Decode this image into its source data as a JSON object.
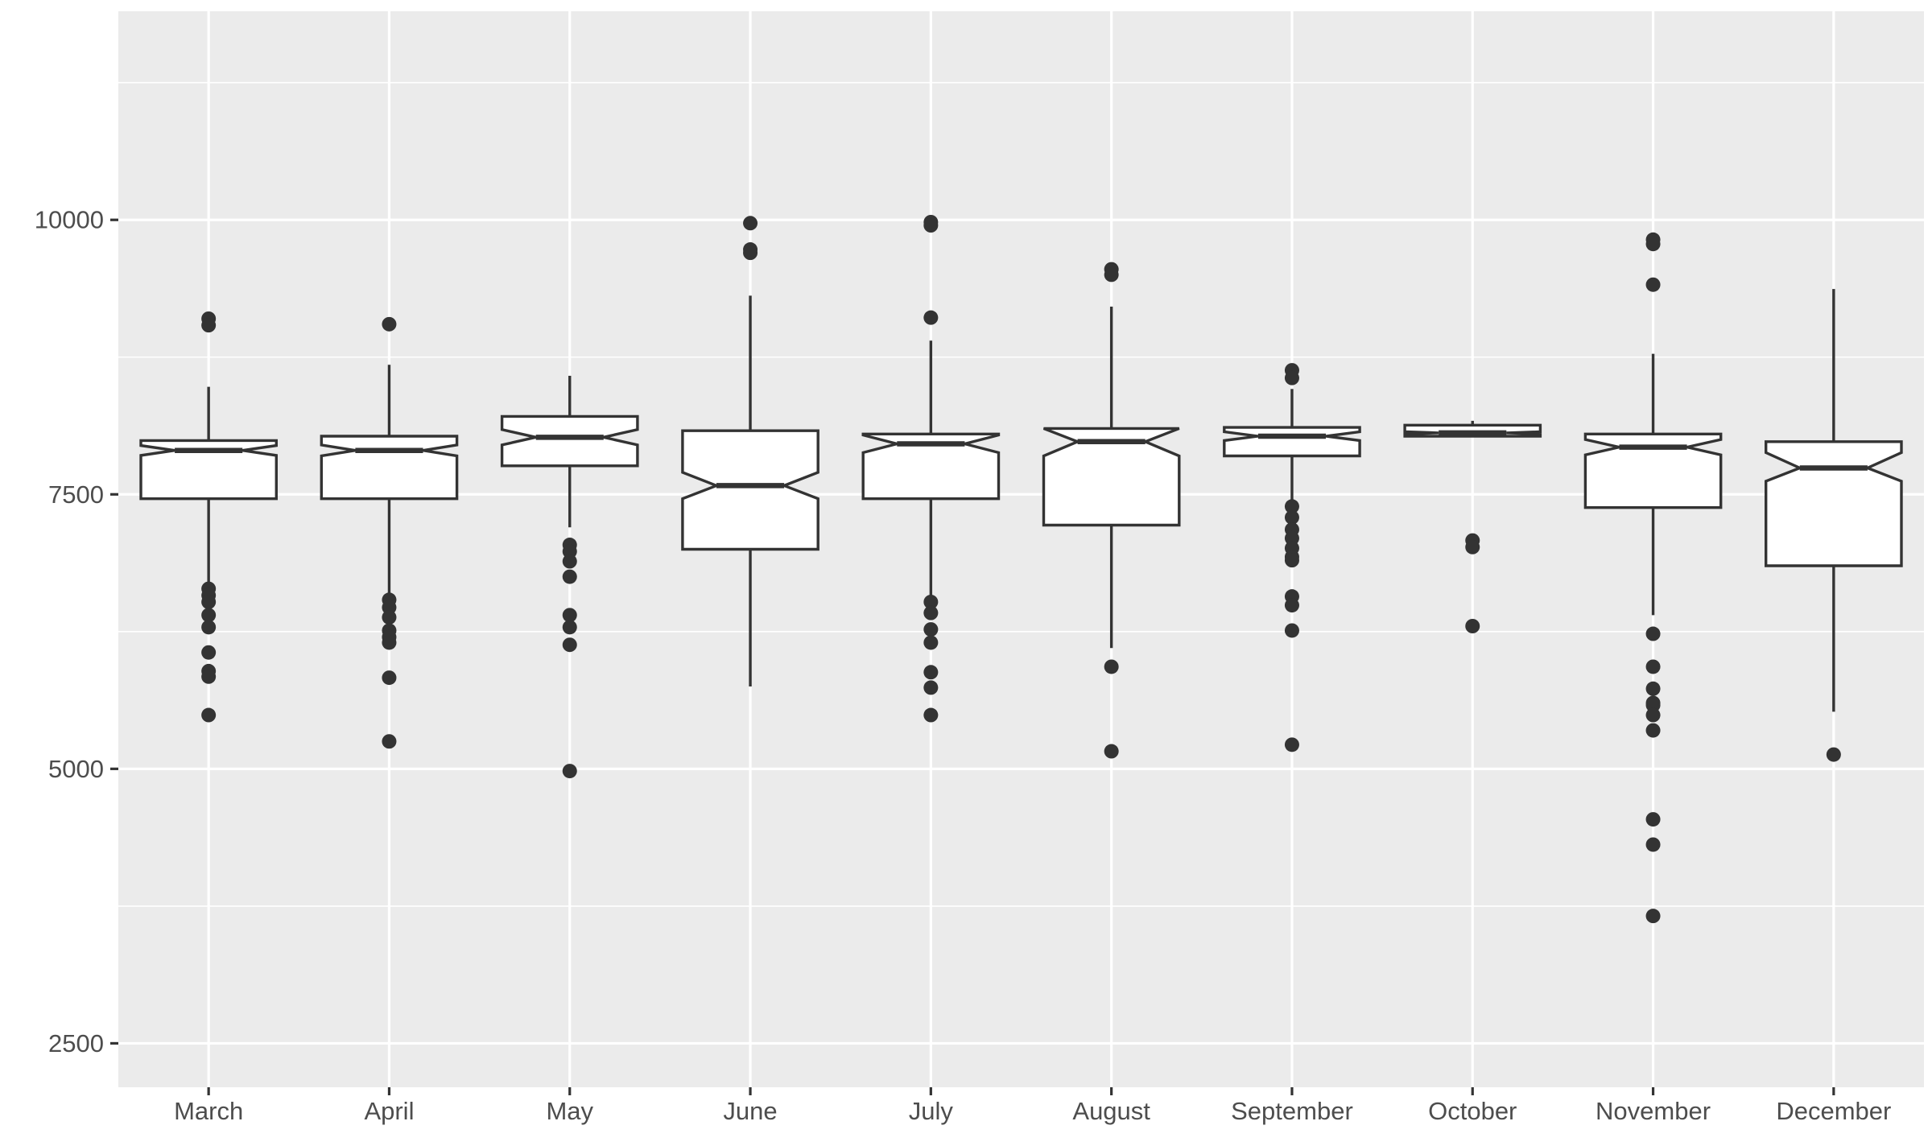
{
  "chart_data": {
    "type": "boxplot",
    "variant": "notched",
    "title": "",
    "xlabel": "",
    "ylabel": "",
    "ylim": [
      2100,
      11900
    ],
    "y_ticks": [
      2500,
      5000,
      7500,
      10000
    ],
    "y_tick_labels": [
      "2500",
      "5000",
      "7500",
      "10000"
    ],
    "categories": [
      "March",
      "April",
      "May",
      "June",
      "July",
      "August",
      "September",
      "October",
      "November",
      "December"
    ],
    "boxes": [
      {
        "category": "March",
        "whisker_low": 6680,
        "q1": 7460,
        "median": 7900,
        "q3": 7990,
        "whisker_high": 8480,
        "notch_low": 7855,
        "notch_high": 7945,
        "outliers": [
          9100,
          9040,
          6640,
          6580,
          6520,
          6400,
          6290,
          6060,
          5890,
          5840,
          5490
        ]
      },
      {
        "category": "April",
        "whisker_low": 6600,
        "q1": 7460,
        "median": 7900,
        "q3": 8030,
        "whisker_high": 8680,
        "notch_low": 7850,
        "notch_high": 7950,
        "outliers": [
          9050,
          6540,
          6470,
          6380,
          6260,
          6200,
          6150,
          5830,
          5250
        ]
      },
      {
        "category": "May",
        "whisker_low": 7200,
        "q1": 7760,
        "median": 8020,
        "q3": 8210,
        "whisker_high": 8580,
        "notch_low": 7950,
        "notch_high": 8090,
        "outliers": [
          7040,
          6980,
          6890,
          6750,
          6400,
          6290,
          6130,
          4980
        ]
      },
      {
        "category": "June",
        "whisker_low": 5750,
        "q1": 7000,
        "median": 7580,
        "q3": 8080,
        "whisker_high": 9310,
        "notch_low": 7460,
        "notch_high": 7700,
        "outliers": [
          9970,
          9730,
          9700
        ]
      },
      {
        "category": "July",
        "whisker_low": 6560,
        "q1": 7460,
        "median": 7960,
        "q3": 8050,
        "whisker_high": 8900,
        "notch_low": 7880,
        "notch_high": 8040,
        "outliers": [
          9980,
          9950,
          9110,
          6520,
          6420,
          6270,
          6150,
          5880,
          5740,
          5490
        ]
      },
      {
        "category": "August",
        "whisker_low": 6100,
        "q1": 7220,
        "median": 7980,
        "q3": 8100,
        "whisker_high": 9210,
        "notch_low": 7850,
        "notch_high": 8110,
        "outliers": [
          9550,
          9500,
          5930,
          5160
        ]
      },
      {
        "category": "September",
        "whisker_low": 7450,
        "q1": 7850,
        "median": 8030,
        "q3": 8110,
        "whisker_high": 8460,
        "notch_low": 7990,
        "notch_high": 8070,
        "outliers": [
          8630,
          8560,
          7390,
          7290,
          7180,
          7100,
          7010,
          6930,
          6900,
          6570,
          6490,
          6260,
          5220
        ]
      },
      {
        "category": "October",
        "whisker_low": 8020,
        "q1": 8030,
        "median": 8060,
        "q3": 8130,
        "whisker_high": 8170,
        "notch_low": 8050,
        "notch_high": 8070,
        "outliers": [
          7080,
          7020,
          6300
        ]
      },
      {
        "category": "November",
        "whisker_low": 6400,
        "q1": 7380,
        "median": 7930,
        "q3": 8050,
        "whisker_high": 8780,
        "notch_low": 7860,
        "notch_high": 8000,
        "outliers": [
          9820,
          9780,
          9410,
          6230,
          5930,
          5730,
          5600,
          5580,
          5490,
          5350,
          4540,
          4310,
          3660
        ]
      },
      {
        "category": "December",
        "whisker_low": 5520,
        "q1": 6850,
        "median": 7740,
        "q3": 7980,
        "whisker_high": 9370,
        "notch_low": 7620,
        "notch_high": 7880,
        "outliers": [
          5130
        ]
      }
    ],
    "colors": {
      "panel_bg": "#ebebeb",
      "grid_major": "#ffffff",
      "box_fill": "#ffffff",
      "box_stroke": "#333333",
      "outlier": "#333333",
      "tick_text": "#4d4d4d",
      "tick_mark": "#333333"
    }
  }
}
